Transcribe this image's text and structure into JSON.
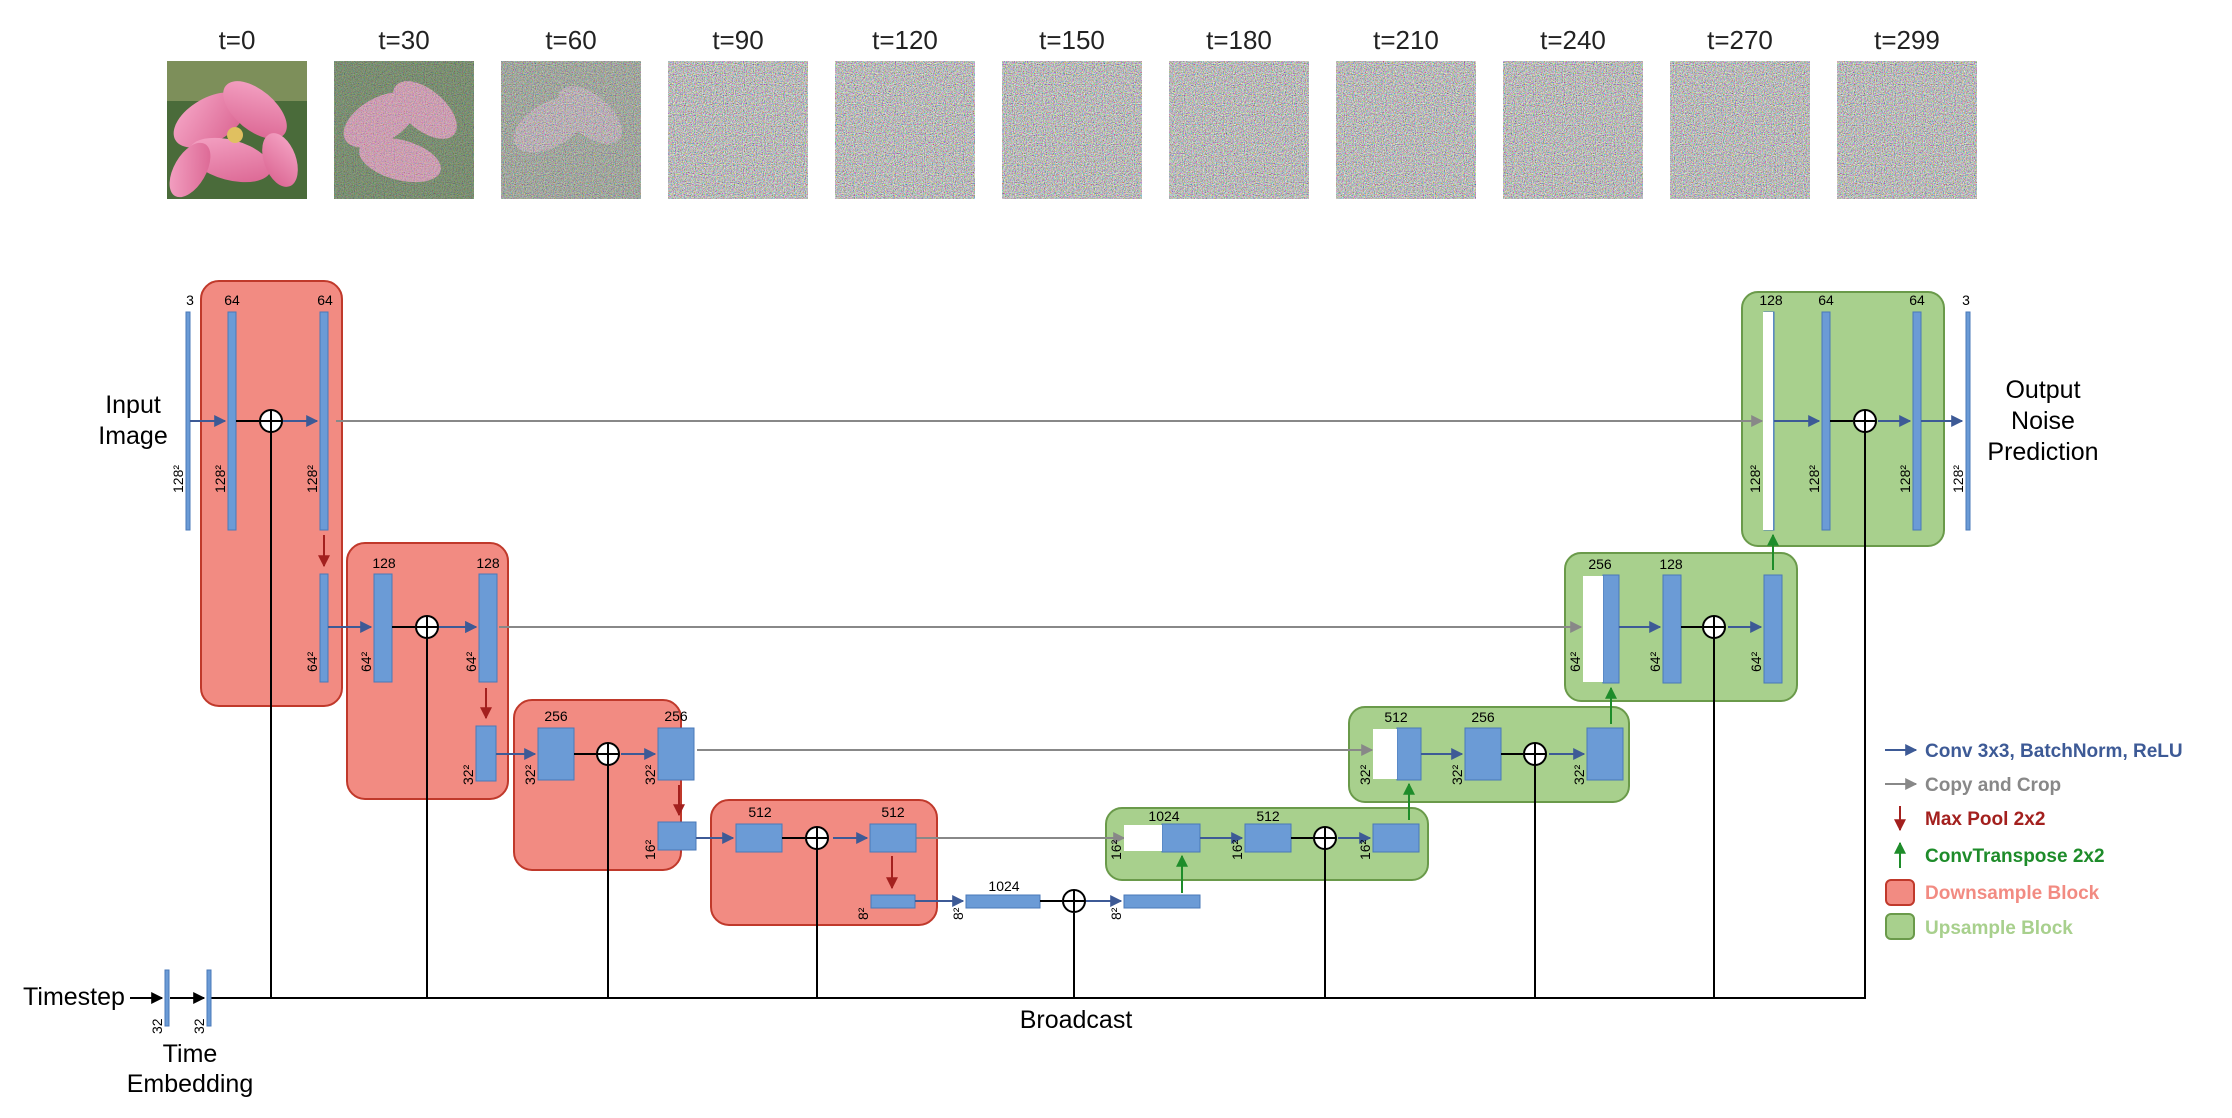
{
  "timeline": {
    "steps": [
      "t=0",
      "t=30",
      "t=60",
      "t=90",
      "t=120",
      "t=150",
      "t=180",
      "t=210",
      "t=240",
      "t=270",
      "t=299"
    ]
  },
  "io": {
    "input_line1": "Input",
    "input_line2": "Image",
    "output_line1": "Output",
    "output_line2": "Noise",
    "output_line3": "Prediction",
    "timestep": "Timestep",
    "time_emb_line1": "Time",
    "time_emb_line2": "Embedding",
    "broadcast": "Broadcast"
  },
  "sizes": {
    "s128": "128²",
    "s64": "64²",
    "s32": "32²",
    "s16": "16²",
    "s8": "8²",
    "t32": "32"
  },
  "channels": {
    "c3": "3",
    "c64": "64",
    "c128": "128",
    "c256": "256",
    "c512": "512",
    "c1024": "1024"
  },
  "legend": {
    "conv": "Conv 3x3, BatchNorm, ReLU",
    "copy": "Copy and Crop",
    "maxpool": "Max Pool 2x2",
    "convt": "ConvTranspose 2x2",
    "down": "Downsample Block",
    "up": "Upsample Block"
  },
  "colors": {
    "conv_blue": "#3d5a96",
    "layer_blue": "#6b9bd6",
    "copy_gray": "#888888",
    "maxpool_red": "#a3201e",
    "convt_green": "#1e8c2a",
    "down_fill": "#f28b82",
    "down_stroke": "#c0392b",
    "up_fill": "#a8d08d",
    "up_stroke": "#6a9a4a"
  }
}
